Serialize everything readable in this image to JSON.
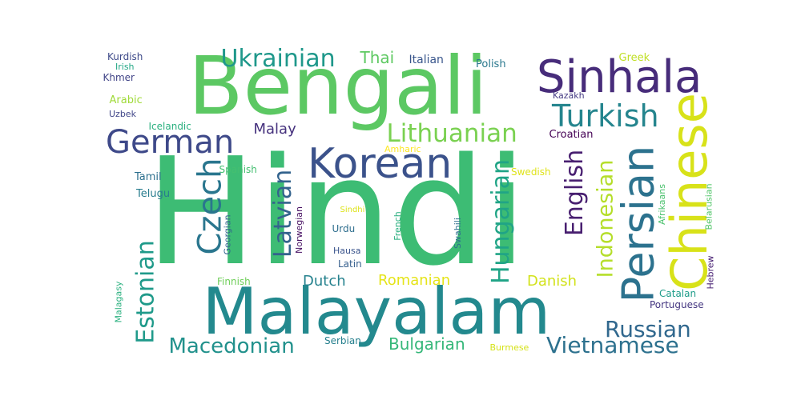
{
  "words": [
    {
      "text": "Hindi",
      "color": "#3dbc74",
      "rotated": false
    },
    {
      "text": "Bengali",
      "color": "#5cc863",
      "rotated": false
    },
    {
      "text": "Malayalam",
      "color": "#23898e",
      "rotated": false
    },
    {
      "text": "Sinhala",
      "color": "#472c7a",
      "rotated": false
    },
    {
      "text": "Chinese",
      "color": "#d8e219",
      "rotated": true
    },
    {
      "text": "Persian",
      "color": "#2c728e",
      "rotated": true
    },
    {
      "text": "Korean",
      "color": "#3b528b",
      "rotated": false
    },
    {
      "text": "German",
      "color": "#3e4989",
      "rotated": false
    },
    {
      "text": "Turkish",
      "color": "#25858e",
      "rotated": false
    },
    {
      "text": "Lithuanian",
      "color": "#7ad151",
      "rotated": false
    },
    {
      "text": "Ukrainian",
      "color": "#1f988b",
      "rotated": false
    },
    {
      "text": "Czech",
      "color": "#2a768e",
      "rotated": true
    },
    {
      "text": "Latvian",
      "color": "#33638d",
      "rotated": true
    },
    {
      "text": "Estonian",
      "color": "#1f9a8a",
      "rotated": true
    },
    {
      "text": "Hungarian",
      "color": "#20a486",
      "rotated": true
    },
    {
      "text": "English",
      "color": "#481f70",
      "rotated": true
    },
    {
      "text": "Indonesian",
      "color": "#b5de2b",
      "rotated": true
    },
    {
      "text": "Russian",
      "color": "#31688e",
      "rotated": false
    },
    {
      "text": "Vietnamese",
      "color": "#2d718e",
      "rotated": false
    },
    {
      "text": "Macedonian",
      "color": "#21918c",
      "rotated": false
    },
    {
      "text": "Bulgarian",
      "color": "#35b779",
      "rotated": false
    },
    {
      "text": "Dutch",
      "color": "#26828e",
      "rotated": false
    },
    {
      "text": "Romanian",
      "color": "#e5e419",
      "rotated": false
    },
    {
      "text": "Danish",
      "color": "#d2e21b",
      "rotated": false
    },
    {
      "text": "Thai",
      "color": "#5ec962",
      "rotated": false
    },
    {
      "text": "Malay",
      "color": "#46327e",
      "rotated": false
    },
    {
      "text": "Italian",
      "color": "#39568c",
      "rotated": false
    },
    {
      "text": "Polish",
      "color": "#2a788e",
      "rotated": false
    },
    {
      "text": "Greek",
      "color": "#c0df25",
      "rotated": false
    },
    {
      "text": "Kazakh",
      "color": "#443a83",
      "rotated": false
    },
    {
      "text": "Croatian",
      "color": "#440154",
      "rotated": false
    },
    {
      "text": "Kurdish",
      "color": "#3e4a89",
      "rotated": false
    },
    {
      "text": "Irish",
      "color": "#22a785",
      "rotated": false
    },
    {
      "text": "Khmer",
      "color": "#414487",
      "rotated": false
    },
    {
      "text": "Arabic",
      "color": "#a0da39",
      "rotated": false
    },
    {
      "text": "Uzbek",
      "color": "#404688",
      "rotated": false
    },
    {
      "text": "Icelandic",
      "color": "#2ab07f",
      "rotated": false
    },
    {
      "text": "Amharic",
      "color": "#fde725",
      "rotated": false
    },
    {
      "text": "Tamil",
      "color": "#2d708e",
      "rotated": false
    },
    {
      "text": "Telugu",
      "color": "#287c8e",
      "rotated": false
    },
    {
      "text": "Spanish",
      "color": "#44bf70",
      "rotated": false
    },
    {
      "text": "Swedish",
      "color": "#dfe318",
      "rotated": false
    },
    {
      "text": "Afrikaans",
      "color": "#4ac16d",
      "rotated": true
    },
    {
      "text": "Belarusian",
      "color": "#52c569",
      "rotated": true
    },
    {
      "text": "Hebrew",
      "color": "#482173",
      "rotated": true
    },
    {
      "text": "Catalan",
      "color": "#1e9c89",
      "rotated": false
    },
    {
      "text": "Portuguese",
      "color": "#453781",
      "rotated": false
    },
    {
      "text": "Burmese",
      "color": "#d5e21a",
      "rotated": false
    },
    {
      "text": "Serbian",
      "color": "#27808e",
      "rotated": false
    },
    {
      "text": "Finnish",
      "color": "#6ece58",
      "rotated": false
    },
    {
      "text": "Malagasy",
      "color": "#2ab07f",
      "rotated": true
    },
    {
      "text": "Georgian",
      "color": "#32648e",
      "rotated": true
    },
    {
      "text": "Norwegian",
      "color": "#471063",
      "rotated": true
    },
    {
      "text": "Sindhi",
      "color": "#dde318",
      "rotated": false
    },
    {
      "text": "Urdu",
      "color": "#2e6e8e",
      "rotated": false
    },
    {
      "text": "Hausa",
      "color": "#3a548c",
      "rotated": false
    },
    {
      "text": "Latin",
      "color": "#355f8d",
      "rotated": false
    },
    {
      "text": "French",
      "color": "#29af7f",
      "rotated": true
    },
    {
      "text": "Swahili",
      "color": "#2e6f8e",
      "rotated": true
    }
  ]
}
